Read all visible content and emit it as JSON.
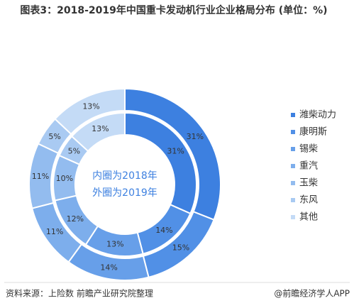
{
  "chart_data": {
    "type": "donut",
    "title": "图表3：2018-2019年中国重卡发动机行业企业格局分布 (单位：%)",
    "center_text": [
      "内圈为2018年",
      "外圈为2019年"
    ],
    "categories": [
      "潍柴动力",
      "康明斯",
      "锡柴",
      "重汽",
      "玉柴",
      "东风",
      "其他"
    ],
    "colors": [
      "#3d80e0",
      "#5190e6",
      "#679fe9",
      "#7daeec",
      "#93bcef",
      "#a9caf2",
      "#c4dbf6"
    ],
    "series": [
      {
        "values": [
          31,
          14,
          13,
          12,
          10,
          5,
          13
        ],
        "value_labels": [
          "31%",
          "14%",
          "13%",
          "12%",
          "10%",
          "5%",
          "13%"
        ]
      },
      {
        "values": [
          31,
          15,
          14,
          11,
          11,
          5,
          13
        ],
        "value_labels": [
          "31%",
          "15%",
          "14%",
          "11%",
          "11%",
          "5%",
          "13%"
        ]
      }
    ]
  },
  "source": "资料来源：上险数 前瞻产业研究院整理",
  "watermark": "@前瞻经济学人APP"
}
